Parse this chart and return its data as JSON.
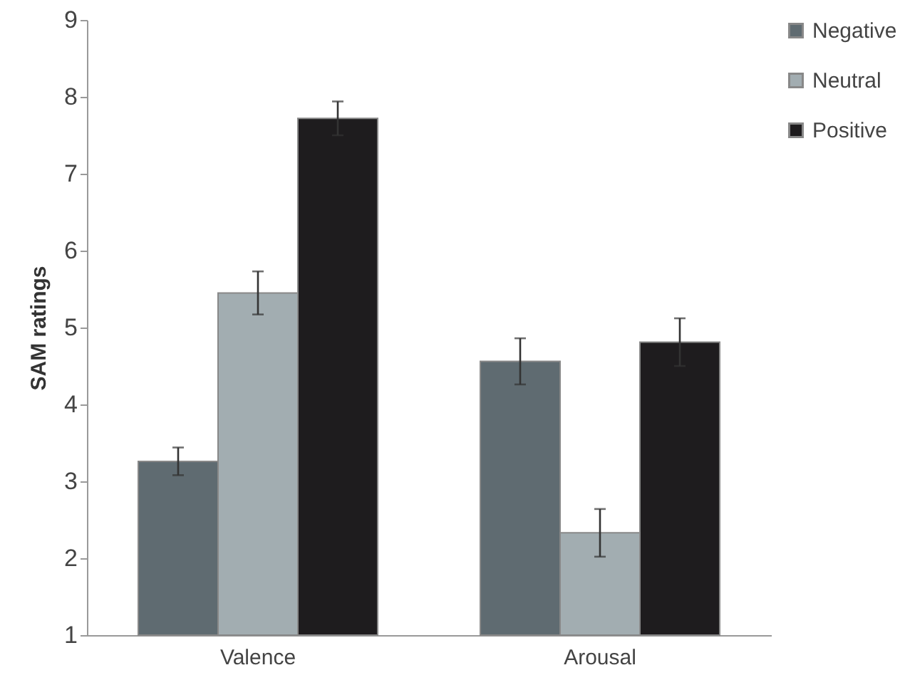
{
  "chart_data": {
    "type": "bar",
    "ylabel": "SAM ratings",
    "categories": [
      "Valence",
      "Arousal"
    ],
    "series": [
      {
        "name": "Negative",
        "color": "#5f6b71",
        "values": [
          3.26,
          4.56
        ],
        "errors": [
          0.18,
          0.3
        ]
      },
      {
        "name": "Neutral",
        "color": "#a2adb1",
        "values": [
          5.45,
          2.33
        ],
        "errors": [
          0.28,
          0.31
        ]
      },
      {
        "name": "Positive",
        "color": "#1e1c1e",
        "values": [
          7.72,
          4.81
        ],
        "errors": [
          0.22,
          0.31
        ]
      }
    ],
    "ylim": [
      1,
      9
    ],
    "yticks": [
      1,
      2,
      3,
      4,
      5,
      6,
      7,
      8,
      9
    ],
    "grid": false,
    "legend": "top right"
  }
}
